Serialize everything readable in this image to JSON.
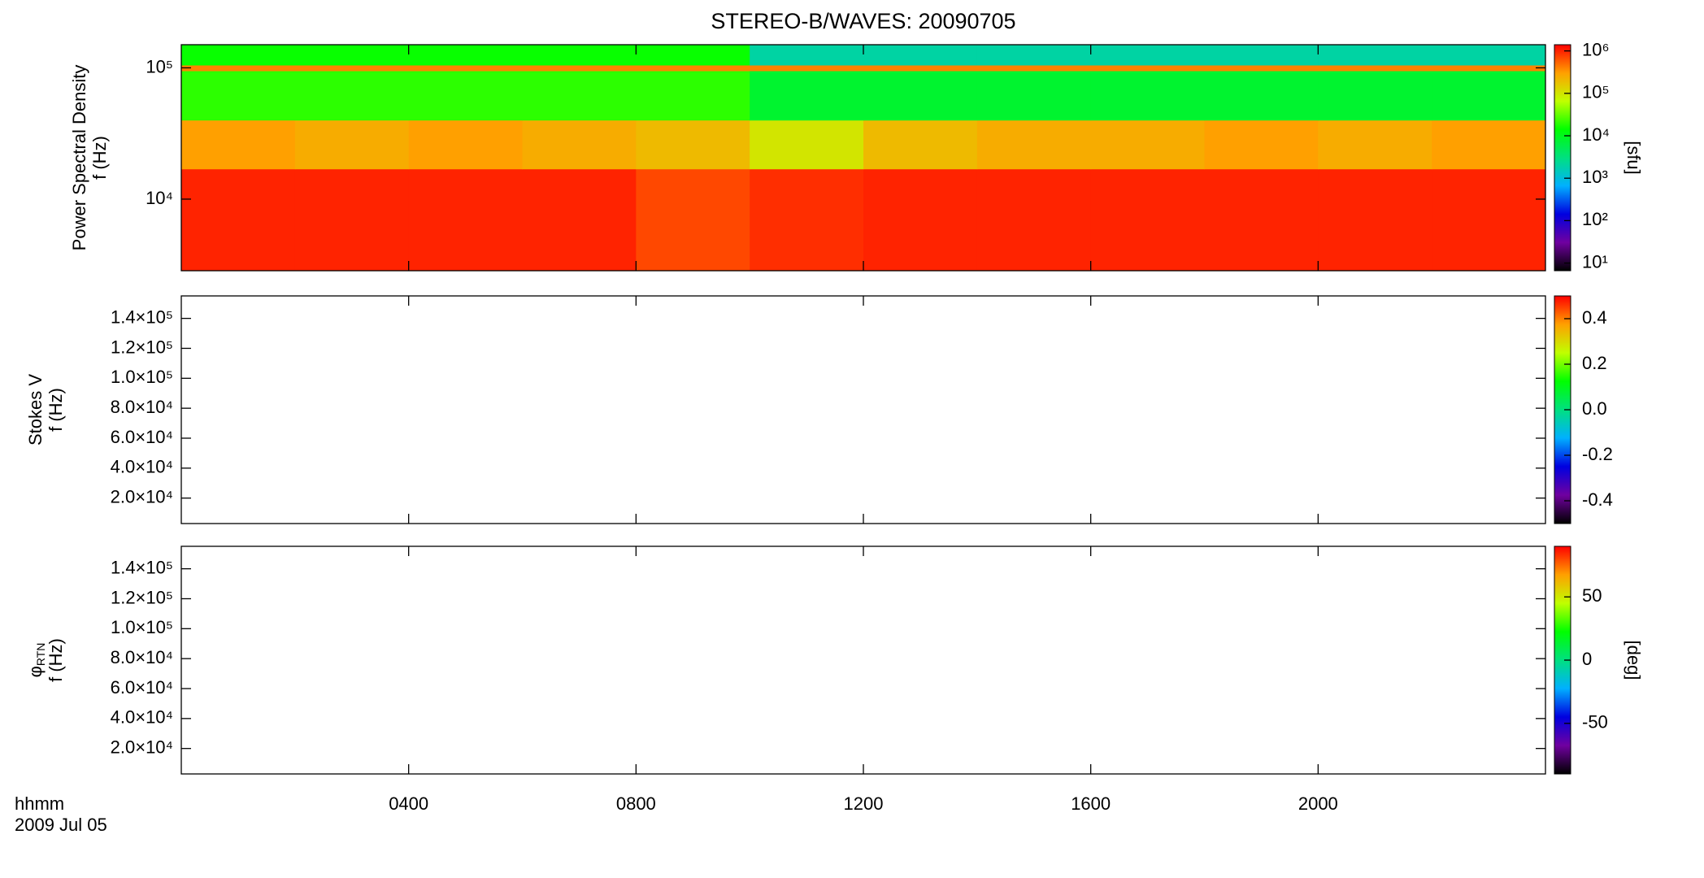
{
  "chart_data": [
    {
      "type": "heatmap",
      "title": "STEREO-B/WAVES: 20090705",
      "ylabel": [
        "Power Spectral Density",
        "f (Hz)"
      ],
      "ylog": true,
      "ylim": [
        2850,
        150000
      ],
      "yticks": [
        {
          "value": 10000,
          "label": "10⁴"
        },
        {
          "value": 100000,
          "label": "10⁵"
        }
      ],
      "x": [
        0,
        2,
        4,
        6,
        8,
        10,
        12,
        14,
        16,
        18,
        20,
        22,
        24
      ],
      "y": [
        2850,
        17000,
        40000,
        95000,
        105000,
        150000
      ],
      "z": [
        [
          1000000,
          1000000,
          1000000,
          1000000,
          700000,
          900000,
          1000000,
          1000000,
          1000000,
          1000000,
          1000000,
          1000000
        ],
        [
          300000,
          250000,
          300000,
          250000,
          200000,
          100000,
          200000,
          250000,
          250000,
          300000,
          250000,
          300000
        ],
        [
          20000,
          20000,
          20000,
          20000,
          20000,
          8000,
          8000,
          8000,
          8000,
          8000,
          8000,
          8000
        ],
        [
          400000,
          400000,
          400000,
          400000,
          400000,
          400000,
          400000,
          400000,
          400000,
          400000,
          400000,
          400000
        ],
        [
          15000,
          15000,
          15000,
          15000,
          15000,
          2000,
          2000,
          2000,
          2000,
          2000,
          2000,
          2000
        ]
      ],
      "clog": true,
      "clim": [
        6.6,
        1400000
      ],
      "cticks": [
        {
          "value": 10,
          "label": "10¹"
        },
        {
          "value": 100,
          "label": "10²"
        },
        {
          "value": 1000,
          "label": "10³"
        },
        {
          "value": 10000,
          "label": "10⁴"
        },
        {
          "value": 100000,
          "label": "10⁵"
        },
        {
          "value": 1000000,
          "label": "10⁶"
        }
      ],
      "clabel": "[sfu]",
      "colormap": [
        "#000000",
        "#7000a0",
        "#0000e0",
        "#00b0ff",
        "#00e080",
        "#00ff00",
        "#c0ff00",
        "#ffa000",
        "#ff0000"
      ]
    },
    {
      "type": "heatmap",
      "ylabel": [
        "Stokes V",
        "f (Hz)"
      ],
      "ylog": false,
      "ylim": [
        3000,
        155000
      ],
      "yticks": [
        {
          "value": 20000,
          "label": "2.0×10⁴"
        },
        {
          "value": 40000,
          "label": "4.0×10⁴"
        },
        {
          "value": 60000,
          "label": "6.0×10⁴"
        },
        {
          "value": 80000,
          "label": "8.0×10⁴"
        },
        {
          "value": 100000,
          "label": "1.0×10⁵"
        },
        {
          "value": 120000,
          "label": "1.2×10⁵"
        },
        {
          "value": 140000,
          "label": "1.4×10⁵"
        }
      ],
      "clog": false,
      "clim": [
        -0.5,
        0.5
      ],
      "cticks": [
        -0.4,
        -0.2,
        {
          "value": 0,
          "label": "0.0"
        },
        0.2,
        0.4
      ]
    },
    {
      "type": "heatmap",
      "ylabel": [
        "φ",
        "f (Hz)"
      ],
      "ylabel_subscript": "RTN",
      "ylog": false,
      "ylim": [
        3000,
        155000
      ],
      "yticks": [
        {
          "value": 20000,
          "label": "2.0×10⁴"
        },
        {
          "value": 40000,
          "label": "4.0×10⁴"
        },
        {
          "value": 60000,
          "label": "6.0×10⁴"
        },
        {
          "value": 80000,
          "label": "8.0×10⁴"
        },
        {
          "value": 100000,
          "label": "1.0×10⁵"
        },
        {
          "value": 120000,
          "label": "1.2×10⁵"
        },
        {
          "value": 140000,
          "label": "1.4×10⁵"
        }
      ],
      "clog": false,
      "clim": [
        -90,
        90
      ],
      "cticks": [
        -50,
        0,
        50
      ],
      "clabel": "[deg]",
      "xlim": [
        0,
        24
      ],
      "xticks": [
        {
          "value": 4,
          "label": "0400"
        },
        {
          "value": 8,
          "label": "0800"
        },
        {
          "value": 12,
          "label": "1200"
        },
        {
          "value": 16,
          "label": "1600"
        },
        {
          "value": 20,
          "label": "2000"
        }
      ],
      "xlabel": "hhmm",
      "date": "2009 Jul 05"
    }
  ]
}
